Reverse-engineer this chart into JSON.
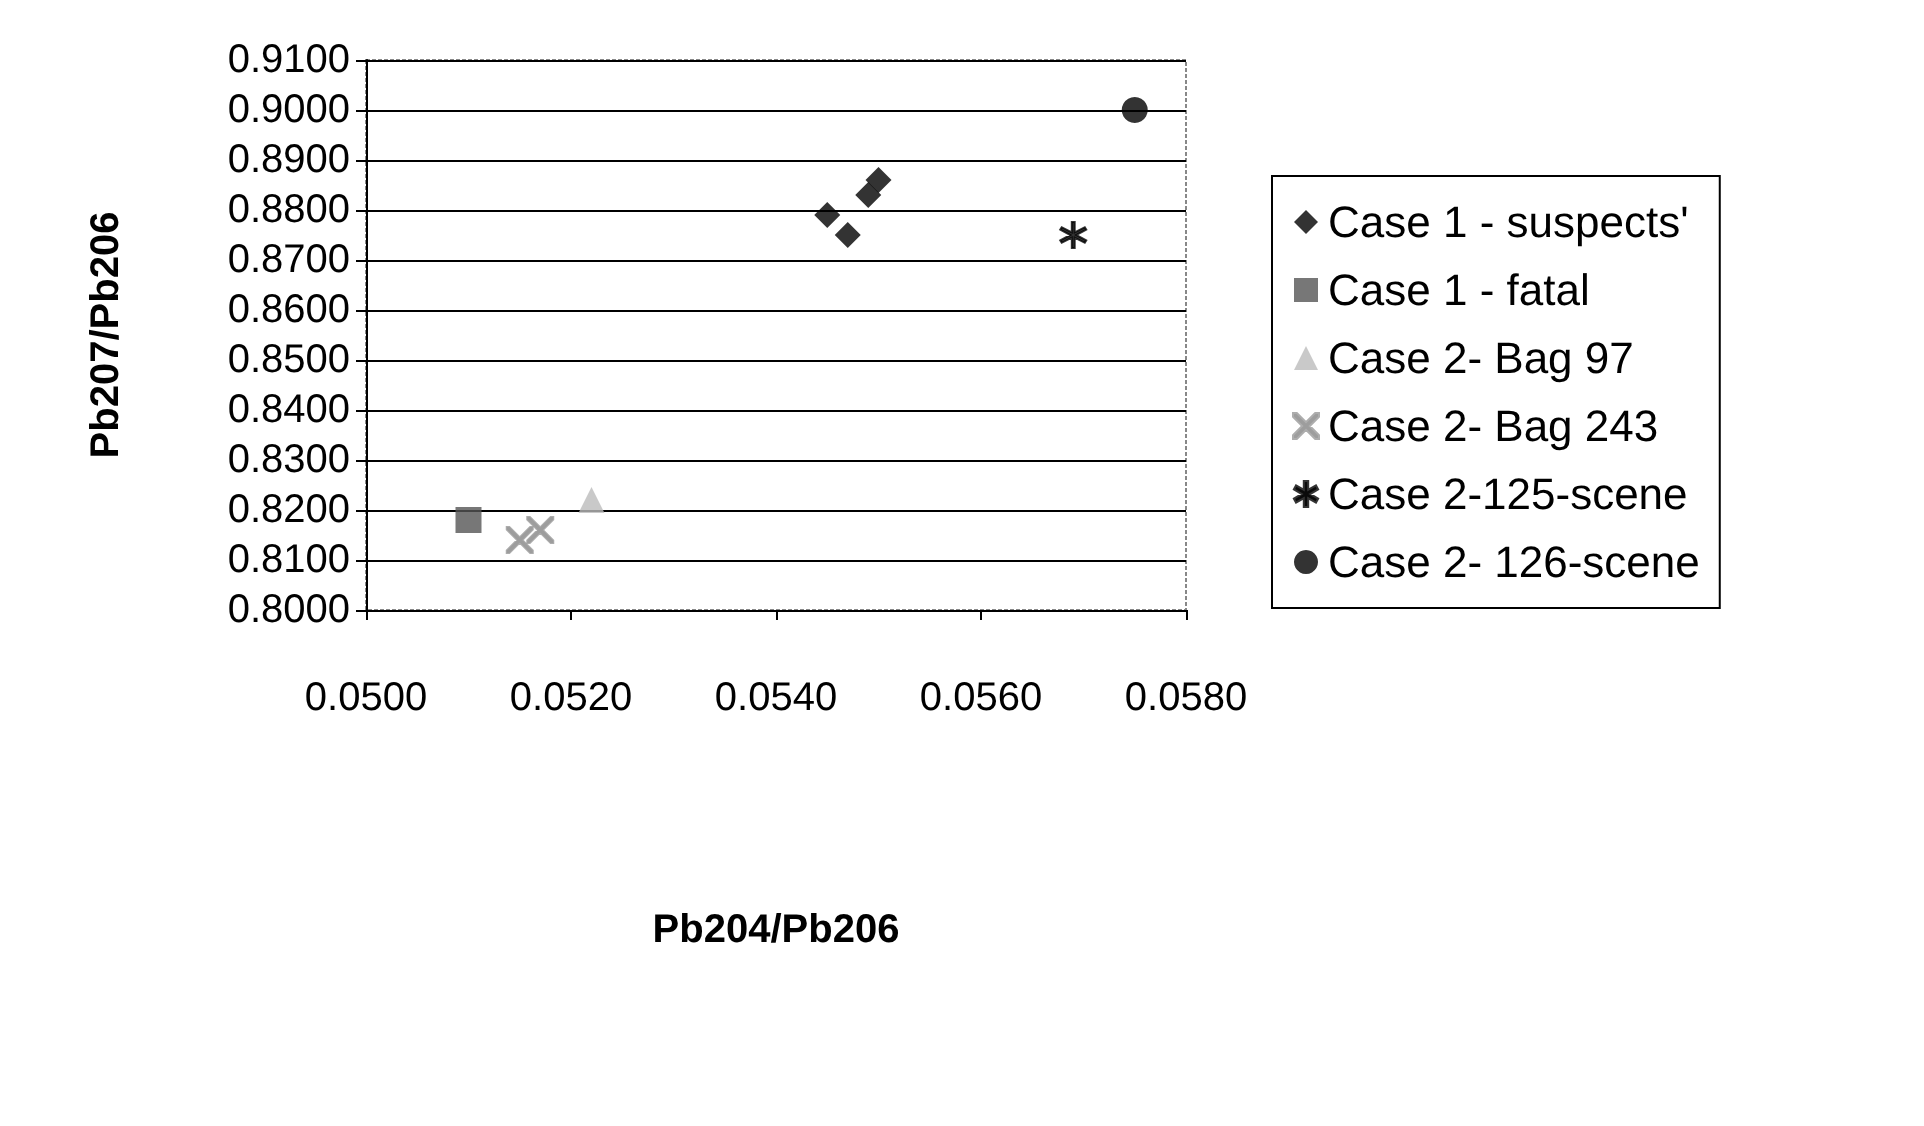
{
  "chart_data": {
    "type": "scatter",
    "xlabel": "Pb204/Pb206",
    "ylabel": "Pb207/Pb206",
    "xlim": [
      0.05,
      0.058
    ],
    "ylim": [
      0.8,
      0.91
    ],
    "xticks": [
      {
        "value": 0.05,
        "label": "0.0500"
      },
      {
        "value": 0.052,
        "label": "0.0520"
      },
      {
        "value": 0.054,
        "label": "0.0540"
      },
      {
        "value": 0.056,
        "label": "0.0560"
      },
      {
        "value": 0.058,
        "label": "0.0580"
      }
    ],
    "yticks": [
      {
        "value": 0.8,
        "label": "0.8000"
      },
      {
        "value": 0.81,
        "label": "0.8100"
      },
      {
        "value": 0.82,
        "label": "0.8200"
      },
      {
        "value": 0.83,
        "label": "0.8300"
      },
      {
        "value": 0.84,
        "label": "0.8400"
      },
      {
        "value": 0.85,
        "label": "0.8500"
      },
      {
        "value": 0.86,
        "label": "0.8600"
      },
      {
        "value": 0.87,
        "label": "0.8700"
      },
      {
        "value": 0.88,
        "label": "0.8800"
      },
      {
        "value": 0.89,
        "label": "0.8900"
      },
      {
        "value": 0.9,
        "label": "0.9000"
      },
      {
        "value": 0.91,
        "label": "0.9100"
      }
    ],
    "grid": "y",
    "legend": "right",
    "series": [
      {
        "name": "Case 1 - suspects'",
        "color": "#000000",
        "marker": "diamond",
        "x": [
          0.0545,
          0.0547,
          0.0549,
          0.055
        ],
        "values": [
          0.879,
          0.875,
          0.883,
          0.886
        ]
      },
      {
        "name": "Case 1 - fatal",
        "color": "#555555",
        "marker": "square",
        "x": [
          0.051
        ],
        "values": [
          0.818
        ]
      },
      {
        "name": "Case 2- Bag 97",
        "color": "#bbbbbb",
        "marker": "triangle",
        "x": [
          0.0522
        ],
        "values": [
          0.822
        ]
      },
      {
        "name": "Case 2- Bag 243",
        "color": "#999999",
        "marker": "cross",
        "x": [
          0.0515,
          0.0517
        ],
        "values": [
          0.814,
          0.816
        ]
      },
      {
        "name": "Case 2-125-scene",
        "color": "#000000",
        "marker": "star",
        "x": [
          0.0569
        ],
        "values": [
          0.875
        ]
      },
      {
        "name": "Case 2- 126-scene",
        "color": "#000000",
        "marker": "circle",
        "x": [
          0.0575
        ],
        "values": [
          0.9
        ]
      }
    ]
  }
}
